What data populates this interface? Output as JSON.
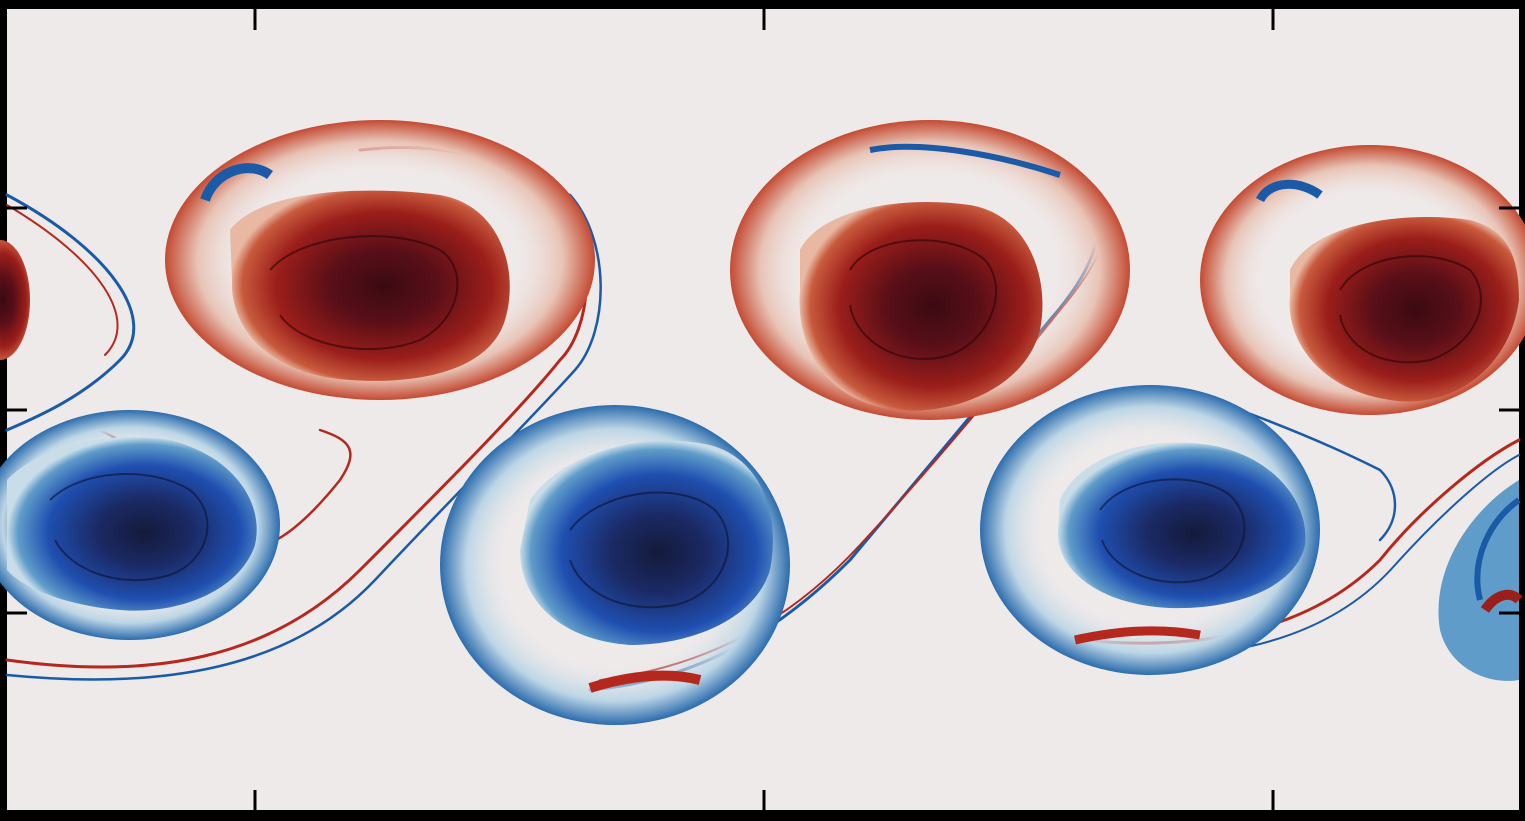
{
  "figure": {
    "kind": "vorticity field visualization (Kármán-style vortex street)",
    "background_color": "#efeaea",
    "frame_color": "#000000",
    "colors": {
      "positive_core": "#3b0a12",
      "positive_mid": "#9b1e1a",
      "positive_edge": "#d9795b",
      "negative_core": "#141a3a",
      "negative_mid": "#1f4fb0",
      "negative_edge": "#8fbad6",
      "filament_red": "#b5281d",
      "filament_blue": "#1a5aa6"
    },
    "tick_labels_x": [],
    "tick_labels_y": []
  }
}
